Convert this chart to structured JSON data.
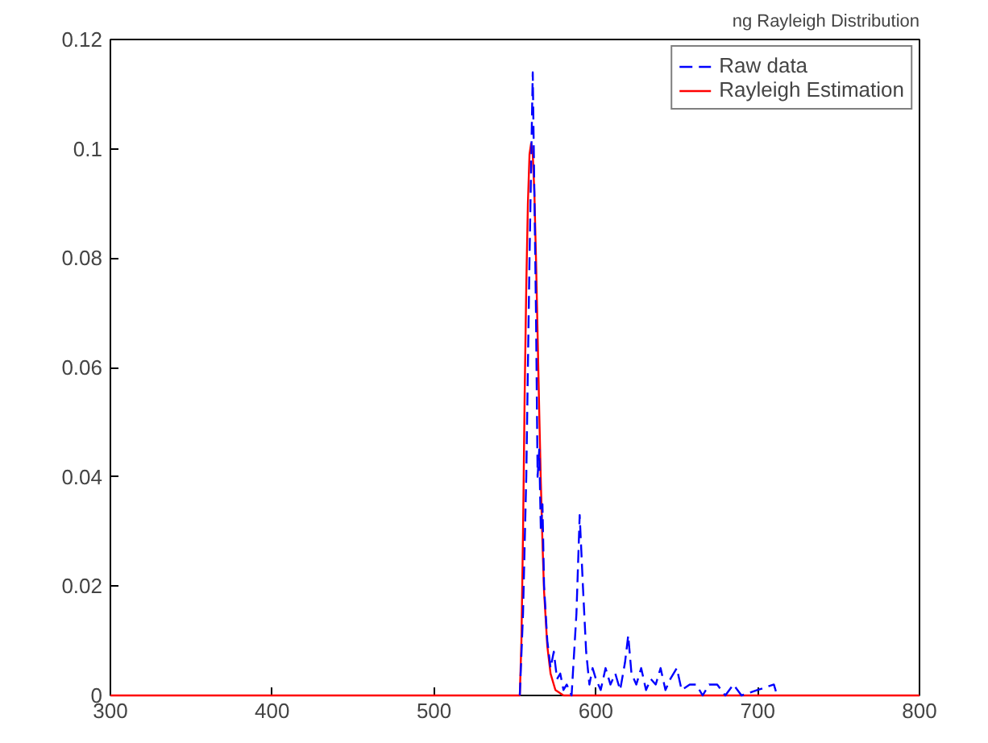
{
  "chart_data": {
    "type": "line",
    "title": "ng Rayleigh Distribution",
    "xlim": [
      300,
      800
    ],
    "ylim": [
      0,
      0.12
    ],
    "xticks": [
      300,
      400,
      500,
      600,
      700,
      800
    ],
    "yticks": [
      {
        "value": 0,
        "label": "0"
      },
      0.02,
      0.04,
      0.06,
      0.08,
      0.1,
      0.12
    ],
    "grid": false,
    "legend": "top right",
    "marker": "none",
    "series": [
      {
        "name": "Raw data",
        "color": "#0000ff",
        "line_style": "dashed",
        "x": [
          553,
          555,
          557,
          559,
          561,
          563,
          564,
          565,
          566,
          567,
          568,
          570,
          572,
          574,
          576,
          578,
          580,
          582,
          585,
          588,
          590,
          592,
          594,
          596,
          598,
          600,
          603,
          606,
          609,
          612,
          615,
          618,
          620,
          622,
          625,
          628,
          631,
          634,
          637,
          640,
          643,
          646,
          650,
          653,
          658,
          662,
          666,
          670,
          675,
          680,
          685,
          690,
          700,
          710,
          712
        ],
        "values": [
          0,
          0.015,
          0.04,
          0.08,
          0.114,
          0.07,
          0.04,
          0.045,
          0.03,
          0.035,
          0.02,
          0.01,
          0.005,
          0.008,
          0.003,
          0.004,
          0.001,
          0.002,
          0,
          0.015,
          0.033,
          0.02,
          0.008,
          0.002,
          0.005,
          0.003,
          0.001,
          0.005,
          0.002,
          0.004,
          0.001,
          0.006,
          0.011,
          0.004,
          0.002,
          0.005,
          0.001,
          0.003,
          0.002,
          0.005,
          0.001,
          0.003,
          0.005,
          0.001,
          0.002,
          0.002,
          0,
          0.002,
          0.002,
          0,
          0.002,
          0,
          0.001,
          0.002,
          0
        ]
      },
      {
        "name": "Rayleigh Estimation",
        "color": "#ff0000",
        "line_style": "solid",
        "x": [
          300,
          553,
          554,
          555,
          556,
          557,
          558,
          559,
          560,
          561,
          562,
          563,
          564,
          565,
          566,
          567,
          568,
          570,
          572,
          575,
          580,
          800
        ],
        "values": [
          0,
          0,
          0.01,
          0.03,
          0.055,
          0.075,
          0.09,
          0.099,
          0.101,
          0.099,
          0.092,
          0.08,
          0.066,
          0.052,
          0.039,
          0.028,
          0.019,
          0.009,
          0.004,
          0.001,
          0,
          0
        ]
      }
    ]
  }
}
